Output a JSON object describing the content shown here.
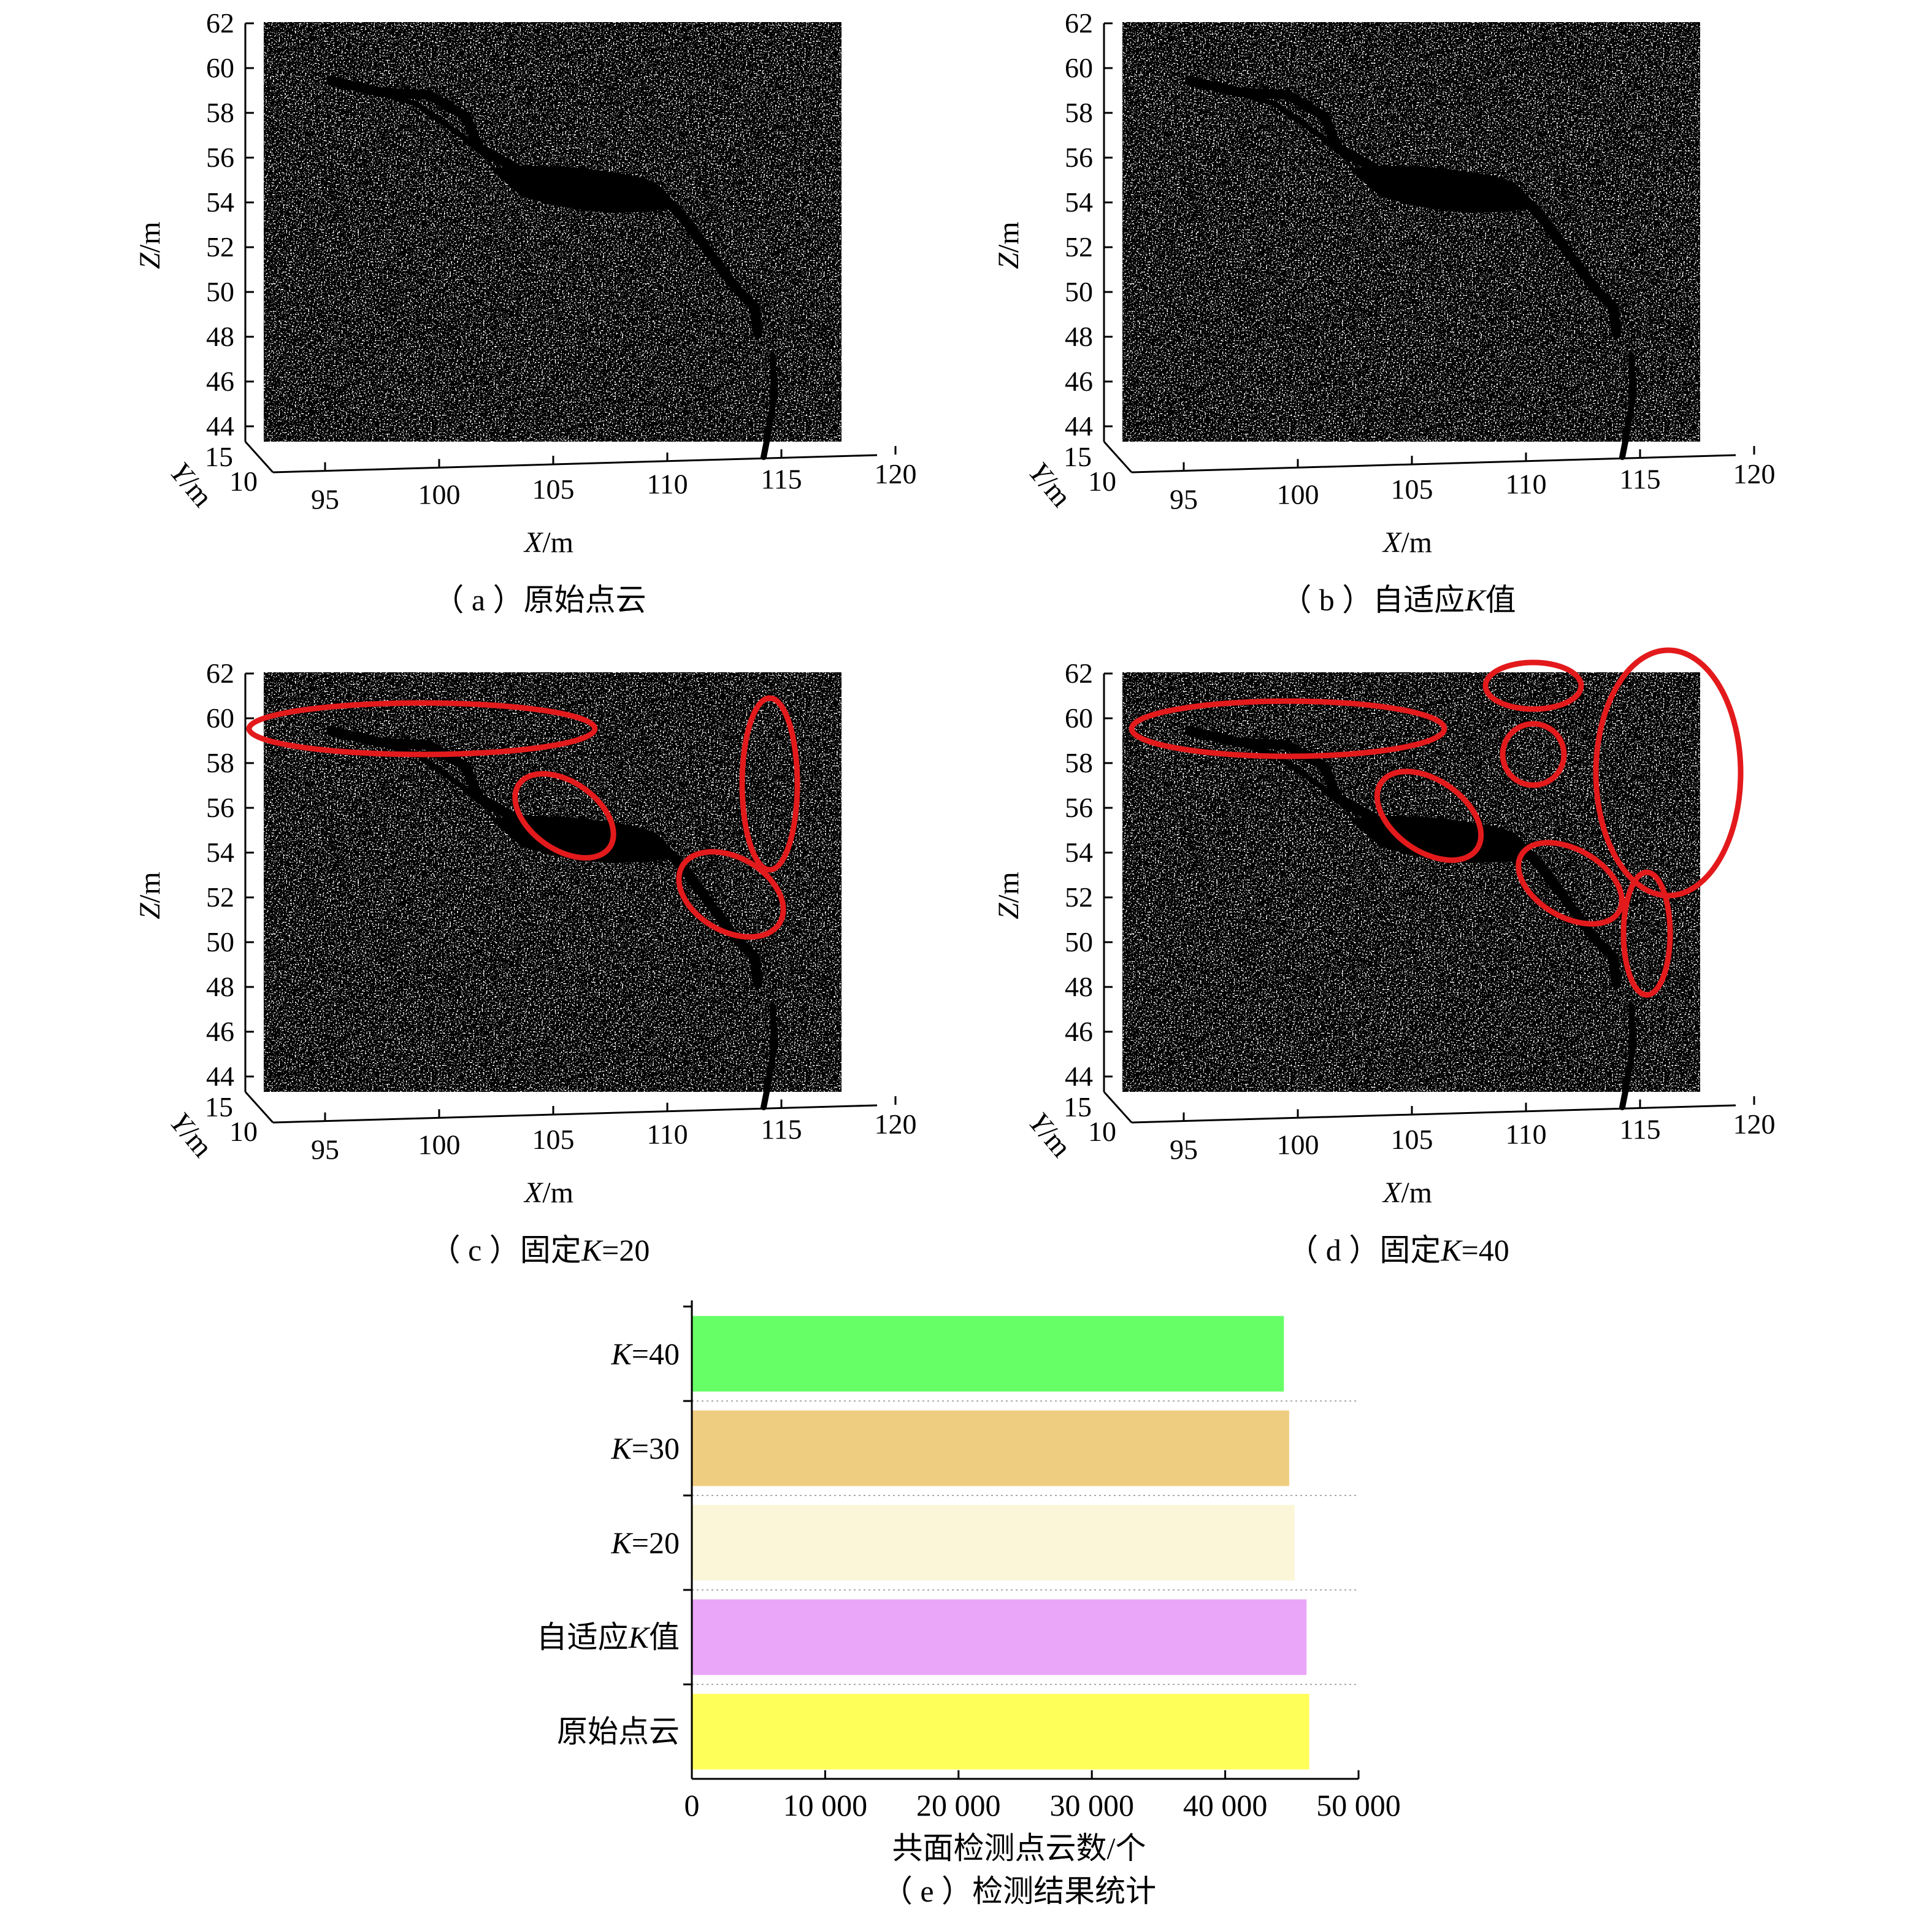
{
  "panels": [
    {
      "id": "a",
      "caption": "（ a ）原始点云",
      "xlabel": "X/m",
      "ylabel": "Y/m",
      "zlabel": "Z/m",
      "x_ticks": [
        "95",
        "100",
        "105",
        "110",
        "115",
        "120"
      ],
      "y_ticks": [
        "15",
        "10"
      ],
      "z_ticks": [
        "62",
        "60",
        "58",
        "56",
        "54",
        "52",
        "50",
        "48",
        "46",
        "44"
      ],
      "highlight_regions": 0
    },
    {
      "id": "b",
      "caption": "（ b ）自适应K值",
      "xlabel": "X/m",
      "ylabel": "Y/m",
      "zlabel": "Z/m",
      "x_ticks": [
        "95",
        "100",
        "105",
        "110",
        "115",
        "120"
      ],
      "y_ticks": [
        "15",
        "10"
      ],
      "z_ticks": [
        "62",
        "60",
        "58",
        "56",
        "54",
        "52",
        "50",
        "48",
        "46",
        "44"
      ],
      "highlight_regions": 0
    },
    {
      "id": "c",
      "caption": "（ c ）固定K=20",
      "xlabel": "X/m",
      "ylabel": "Y/m",
      "zlabel": "Z/m",
      "x_ticks": [
        "95",
        "100",
        "105",
        "110",
        "115",
        "120"
      ],
      "y_ticks": [
        "15",
        "10"
      ],
      "z_ticks": [
        "62",
        "60",
        "58",
        "56",
        "54",
        "52",
        "50",
        "48",
        "46",
        "44"
      ],
      "highlight_regions": 4
    },
    {
      "id": "d",
      "caption": "（ d ）固定K=40",
      "xlabel": "X/m",
      "ylabel": "Y/m",
      "zlabel": "Z/m",
      "x_ticks": [
        "95",
        "100",
        "105",
        "110",
        "115",
        "120"
      ],
      "y_ticks": [
        "15",
        "10"
      ],
      "z_ticks": [
        "62",
        "60",
        "58",
        "56",
        "54",
        "52",
        "50",
        "48",
        "46",
        "44"
      ],
      "highlight_regions": 7
    }
  ],
  "highlight_color": "#e31a1c",
  "chart_data": {
    "type": "bar",
    "orientation": "horizontal",
    "caption": "（ e ）检测结果统计",
    "xlabel": "共面检测点云数/个",
    "ylabel": "",
    "xlim": [
      0,
      50000
    ],
    "x_ticks": [
      0,
      10000,
      20000,
      30000,
      40000,
      50000
    ],
    "x_tick_labels": [
      "0",
      "10 000",
      "20 000",
      "30 000",
      "40 000",
      "50 000"
    ],
    "categories": [
      "K=40",
      "K=30",
      "K=20",
      "自适应K值",
      "原始点云"
    ],
    "values": [
      44400,
      44800,
      45200,
      46100,
      46300
    ],
    "colors": [
      "#66ff66",
      "#efcd80",
      "#fbf6d7",
      "#eaa6f8",
      "#ffff5a"
    ],
    "grid": "horizontal-dotted",
    "legend": "none"
  }
}
